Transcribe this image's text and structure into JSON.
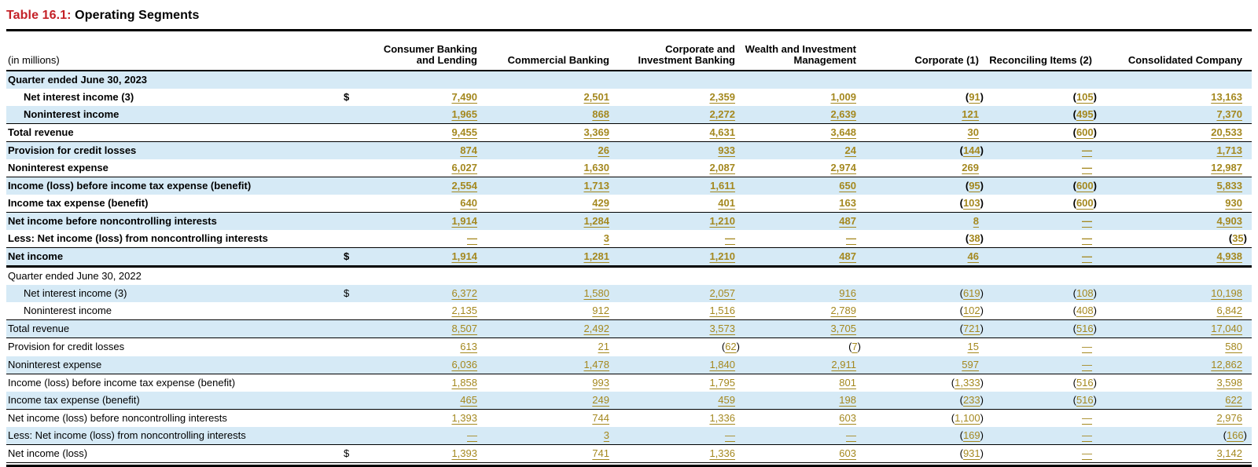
{
  "title": {
    "prefix": "Table 16.1:",
    "text": "Operating Segments"
  },
  "colors": {
    "accent_red": "#c42127",
    "stripe_blue": "#d6eaf6",
    "value_gold": "#a4881f"
  },
  "table": {
    "unit_label": "(in millions)",
    "columns": [
      "Consumer Banking and Lending",
      "Commercial Banking",
      "Corporate and Investment Banking",
      "Wealth and Investment Management",
      "Corporate (1)",
      "Reconciling Items (2)",
      "Consolidated Company"
    ],
    "sections": [
      {
        "heading": "Quarter ended June 30, 2023",
        "bold": true,
        "rows": [
          {
            "label": "Net interest income (3)",
            "indent": true,
            "dollar": true,
            "values": [
              "7,490",
              "2,501",
              "2,359",
              "1,009",
              "(91)",
              "(105)",
              "13,163"
            ]
          },
          {
            "label": "Noninterest income",
            "indent": true,
            "values": [
              "1,965",
              "868",
              "2,272",
              "2,639",
              "121",
              "(495)",
              "7,370"
            ]
          },
          {
            "label": "Total revenue",
            "bt": true,
            "values": [
              "9,455",
              "3,369",
              "4,631",
              "3,648",
              "30",
              "(600)",
              "20,533"
            ]
          },
          {
            "label": "Provision for credit losses",
            "bt": true,
            "values": [
              "874",
              "26",
              "933",
              "24",
              "(144)",
              "—",
              "1,713"
            ]
          },
          {
            "label": "Noninterest expense",
            "values": [
              "6,027",
              "1,630",
              "2,087",
              "2,974",
              "269",
              "—",
              "12,987"
            ]
          },
          {
            "label": "Income (loss) before income tax expense (benefit)",
            "bt": true,
            "values": [
              "2,554",
              "1,713",
              "1,611",
              "650",
              "(95)",
              "(600)",
              "5,833"
            ]
          },
          {
            "label": "Income tax expense (benefit)",
            "values": [
              "640",
              "429",
              "401",
              "163",
              "(103)",
              "(600)",
              "930"
            ]
          },
          {
            "label": "Net income before noncontrolling interests",
            "bt": true,
            "values": [
              "1,914",
              "1,284",
              "1,210",
              "487",
              "8",
              "—",
              "4,903"
            ]
          },
          {
            "label": "Less: Net income (loss) from noncontrolling interests",
            "values": [
              "—",
              "3",
              "—",
              "—",
              "(38)",
              "—",
              "(35)"
            ]
          },
          {
            "label": "Net income",
            "bt": true,
            "dollar": true,
            "values": [
              "1,914",
              "1,281",
              "1,210",
              "487",
              "46",
              "—",
              "4,938"
            ]
          }
        ]
      },
      {
        "heading": "Quarter ended June 30, 2022",
        "bold": false,
        "rows": [
          {
            "label": "Net interest income (3)",
            "indent": true,
            "dollar": true,
            "values": [
              "6,372",
              "1,580",
              "2,057",
              "916",
              "(619)",
              "(108)",
              "10,198"
            ]
          },
          {
            "label": "Noninterest income",
            "indent": true,
            "values": [
              "2,135",
              "912",
              "1,516",
              "2,789",
              "(102)",
              "(408)",
              "6,842"
            ]
          },
          {
            "label": "Total revenue",
            "bt": true,
            "values": [
              "8,507",
              "2,492",
              "3,573",
              "3,705",
              "(721)",
              "(516)",
              "17,040"
            ]
          },
          {
            "label": "Provision for credit losses",
            "bt": true,
            "values": [
              "613",
              "21",
              "(62)",
              "(7)",
              "15",
              "—",
              "580"
            ]
          },
          {
            "label": "Noninterest expense",
            "values": [
              "6,036",
              "1,478",
              "1,840",
              "2,911",
              "597",
              "—",
              "12,862"
            ]
          },
          {
            "label": "Income (loss) before income tax expense (benefit)",
            "bt": true,
            "values": [
              "1,858",
              "993",
              "1,795",
              "801",
              "(1,333)",
              "(516)",
              "3,598"
            ]
          },
          {
            "label": "Income tax expense (benefit)",
            "values": [
              "465",
              "249",
              "459",
              "198",
              "(233)",
              "(516)",
              "622"
            ]
          },
          {
            "label": "Net income (loss) before noncontrolling interests",
            "bt": true,
            "values": [
              "1,393",
              "744",
              "1,336",
              "603",
              "(1,100)",
              "—",
              "2,976"
            ]
          },
          {
            "label": "Less: Net income (loss) from noncontrolling interests",
            "values": [
              "—",
              "3",
              "—",
              "—",
              "(169)",
              "—",
              "(166)"
            ]
          },
          {
            "label": "Net income (loss)",
            "bt": true,
            "dollar": true,
            "values": [
              "1,393",
              "741",
              "1,336",
              "603",
              "(931)",
              "—",
              "3,142"
            ]
          }
        ]
      }
    ]
  }
}
